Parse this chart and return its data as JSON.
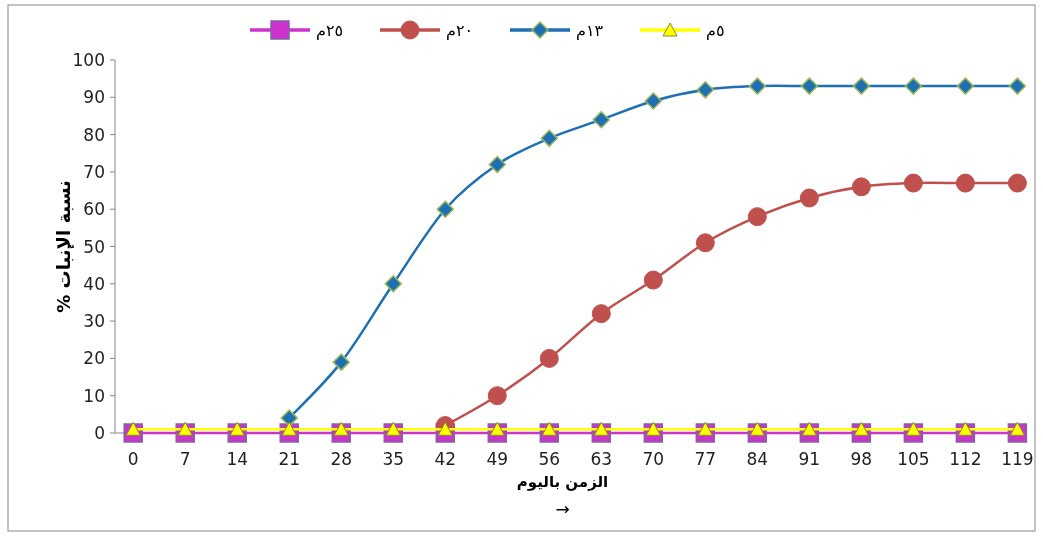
{
  "chart_data": {
    "type": "line",
    "xlabel": "الزمن باليوم",
    "ylabel": "نسبة الإنبات %",
    "annotations": [
      "→"
    ],
    "categories": [
      "0",
      "7",
      "14",
      "21",
      "28",
      "35",
      "42",
      "49",
      "56",
      "63",
      "70",
      "77",
      "84",
      "91",
      "98",
      "105",
      "112",
      "119"
    ],
    "ylim": [
      0,
      100
    ],
    "yticks": [
      0,
      10,
      20,
      30,
      40,
      50,
      60,
      70,
      80,
      90,
      100
    ],
    "grid": false,
    "legend": "top",
    "series": [
      {
        "name": "٢٥م",
        "color": "#cc33cc",
        "marker": "square",
        "values": [
          0,
          0,
          0,
          0,
          0,
          0,
          0,
          0,
          0,
          0,
          0,
          0,
          0,
          0,
          0,
          0,
          0,
          0
        ]
      },
      {
        "name": "٢٠م",
        "color": "#c0504d",
        "marker": "circle",
        "values": [
          null,
          null,
          null,
          null,
          null,
          null,
          2,
          10,
          20,
          32,
          41,
          51,
          58,
          63,
          66,
          67,
          67,
          67
        ]
      },
      {
        "name": "١٣م",
        "color": "#1f6fb4",
        "marker": "diamond",
        "values": [
          null,
          null,
          null,
          4,
          19,
          40,
          60,
          72,
          79,
          84,
          89,
          92,
          93,
          93,
          93,
          93,
          93,
          93
        ]
      },
      {
        "name": "٥م",
        "color": "#ffff00",
        "marker": "triangle",
        "values": [
          1,
          1,
          1,
          1,
          1,
          1,
          1,
          1,
          1,
          1,
          1,
          1,
          1,
          1,
          1,
          1,
          1,
          1
        ]
      }
    ]
  }
}
